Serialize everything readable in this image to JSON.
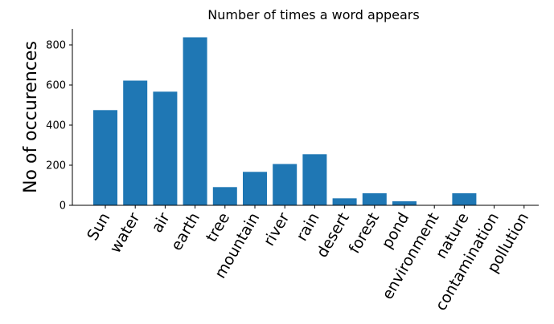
{
  "chart_data": {
    "type": "bar",
    "title": "Number of times a word appears",
    "xlabel": "",
    "ylabel": "No of occurences",
    "categories": [
      "Sun",
      "water",
      "air",
      "earth",
      "tree",
      "mountain",
      "river",
      "rain",
      "desert",
      "forest",
      "pond",
      "environment",
      "nature",
      "contamination",
      "pollution"
    ],
    "values": [
      475,
      622,
      567,
      838,
      91,
      167,
      206,
      255,
      35,
      60,
      20,
      0,
      60,
      0,
      0
    ],
    "ylim": [
      0,
      880
    ],
    "yticks": [
      0,
      200,
      400,
      600,
      800
    ],
    "grid": false,
    "legend": "none",
    "bar_color": "#1f77b4"
  }
}
